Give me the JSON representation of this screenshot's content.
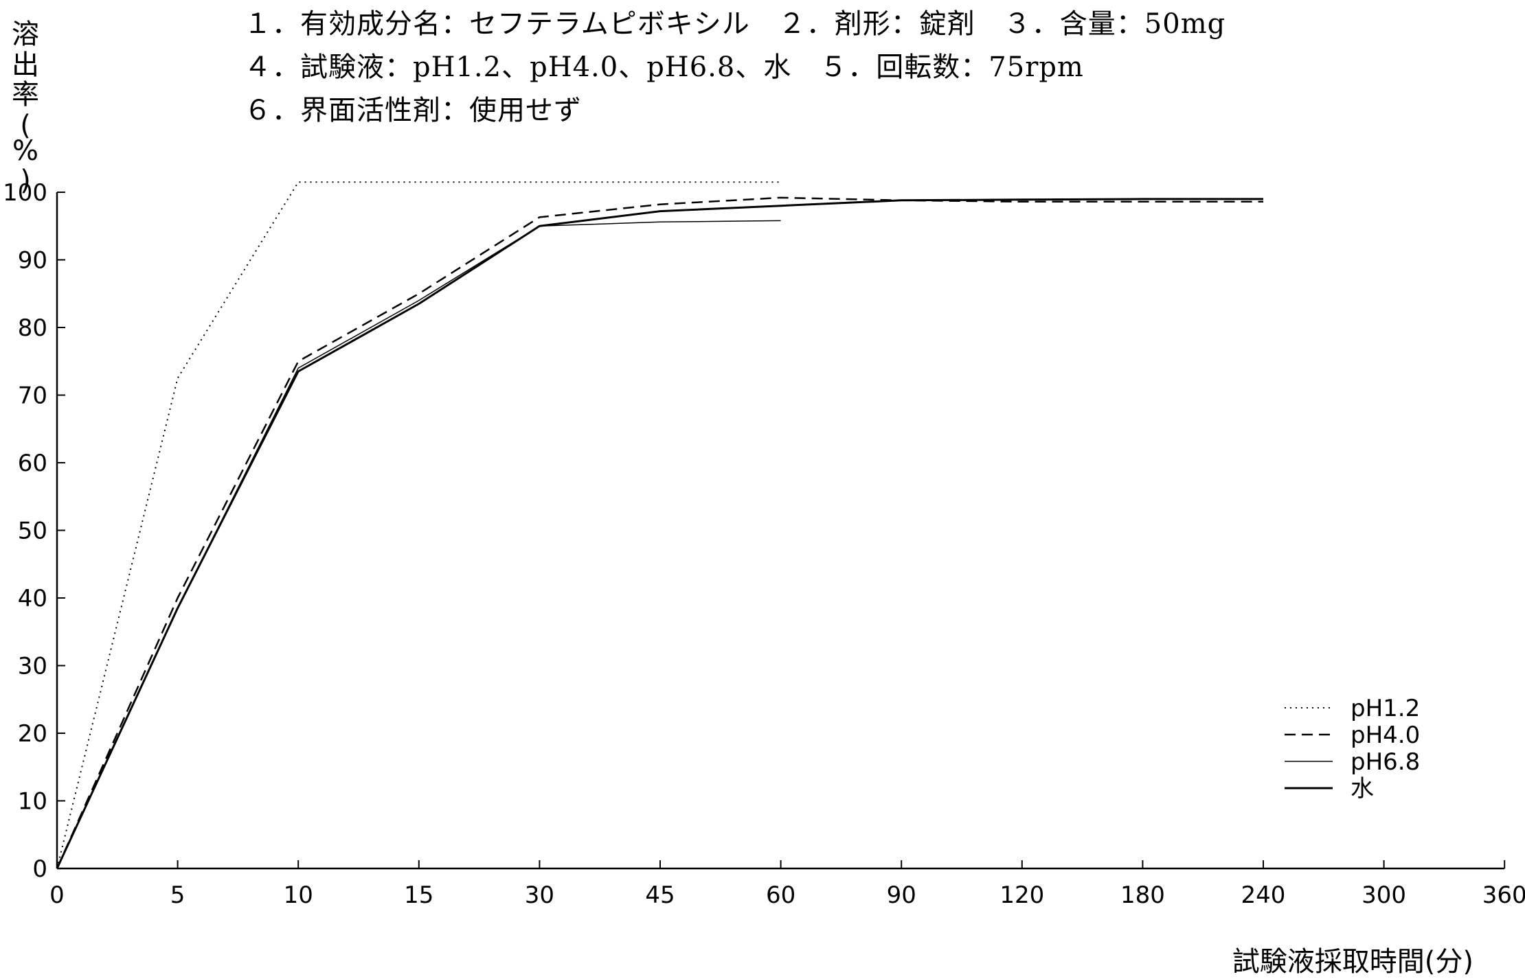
{
  "header": {
    "line1": "１．有効成分名：セフテラムピボキシル　２．剤形：錠剤　３．含量：50mg",
    "line2": "４．試験液：pH1.2、pH4.0、pH6.8、水　５．回転数：75rpm",
    "line3": "６．界面活性剤：使用せず"
  },
  "chart_data": {
    "type": "line",
    "title": "",
    "ylabel": "溶出率(%)",
    "xlabel": "試験液採取時間(分)",
    "ylim": [
      0,
      100
    ],
    "yticks": [
      "0",
      "10",
      "20",
      "30",
      "40",
      "50",
      "60",
      "70",
      "80",
      "90",
      "100"
    ],
    "x": [
      "0",
      "5",
      "10",
      "15",
      "30",
      "45",
      "60",
      "90",
      "120",
      "180",
      "240",
      "300",
      "360"
    ],
    "grid": false,
    "legend_position": "bottom-right",
    "series": [
      {
        "name": "pH1.2",
        "style": "dotted",
        "points": [
          [
            0,
            0
          ],
          [
            5,
            72.5
          ],
          [
            10,
            101.5
          ],
          [
            15,
            101.5
          ],
          [
            30,
            101.5
          ],
          [
            45,
            101.5
          ],
          [
            60,
            101.5
          ]
        ]
      },
      {
        "name": "pH4.0",
        "style": "dashed",
        "points": [
          [
            0,
            0
          ],
          [
            5,
            40
          ],
          [
            10,
            75
          ],
          [
            15,
            85
          ],
          [
            30,
            96.3
          ],
          [
            45,
            98.2
          ],
          [
            60,
            99.2
          ],
          [
            90,
            98.8
          ],
          [
            120,
            98.6
          ],
          [
            180,
            98.6
          ],
          [
            240,
            98.6
          ]
        ]
      },
      {
        "name": "pH6.8",
        "style": "thin",
        "points": [
          [
            0,
            0
          ],
          [
            5,
            38.5
          ],
          [
            10,
            74
          ],
          [
            15,
            84
          ],
          [
            30,
            95
          ],
          [
            45,
            95.6
          ],
          [
            60,
            95.8
          ]
        ]
      },
      {
        "name": "水",
        "style": "solid",
        "points": [
          [
            0,
            0
          ],
          [
            5,
            38.5
          ],
          [
            10,
            73.5
          ],
          [
            15,
            83.5
          ],
          [
            30,
            95
          ],
          [
            45,
            97.2
          ],
          [
            60,
            98
          ],
          [
            90,
            98.8
          ],
          [
            120,
            98.9
          ],
          [
            180,
            99
          ],
          [
            240,
            99
          ]
        ]
      }
    ]
  }
}
